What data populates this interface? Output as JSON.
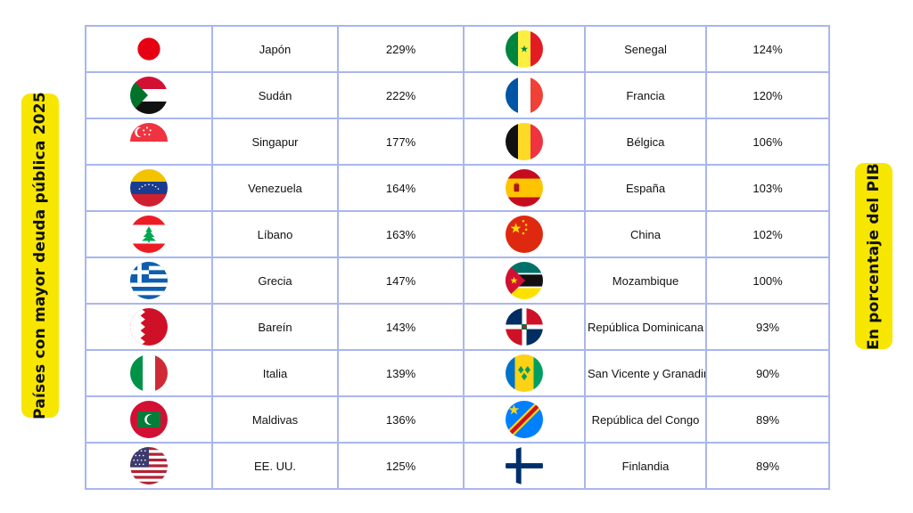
{
  "side_labels": {
    "left": "Países con mayor deuda pública 2025",
    "right": "En porcentaje del PIB"
  },
  "colors": {
    "label_background": "#f7e600",
    "grid_border": "#a9b6ee"
  },
  "chart_data": {
    "type": "table",
    "columns": [
      "flag",
      "country",
      "debt_pct_gdp"
    ],
    "left_column": [
      {
        "flag": "japan-flag-icon",
        "country": "Japón",
        "value": "229%"
      },
      {
        "flag": "sudan-flag-icon",
        "country": "Sudán",
        "value": "222%"
      },
      {
        "flag": "singapore-flag-icon",
        "country": "Singapur",
        "value": "177%"
      },
      {
        "flag": "venezuela-flag-icon",
        "country": "Venezuela",
        "value": "164%"
      },
      {
        "flag": "lebanon-flag-icon",
        "country": "Líbano",
        "value": "163%"
      },
      {
        "flag": "greece-flag-icon",
        "country": "Grecia",
        "value": "147%"
      },
      {
        "flag": "bahrain-flag-icon",
        "country": "Bareín",
        "value": "143%"
      },
      {
        "flag": "italy-flag-icon",
        "country": "Italia",
        "value": "139%"
      },
      {
        "flag": "maldives-flag-icon",
        "country": "Maldivas",
        "value": "136%"
      },
      {
        "flag": "usa-flag-icon",
        "country": "EE. UU.",
        "value": "125%"
      }
    ],
    "right_column": [
      {
        "flag": "senegal-flag-icon",
        "country": "Senegal",
        "value": "124%"
      },
      {
        "flag": "france-flag-icon",
        "country": "Francia",
        "value": "120%"
      },
      {
        "flag": "belgium-flag-icon",
        "country": "Bélgica",
        "value": "106%"
      },
      {
        "flag": "spain-flag-icon",
        "country": "España",
        "value": "103%"
      },
      {
        "flag": "china-flag-icon",
        "country": "China",
        "value": "102%"
      },
      {
        "flag": "mozambique-flag-icon",
        "country": "Mozambique",
        "value": "100%"
      },
      {
        "flag": "dominican-republic-flag-icon",
        "country": "República Dominicana",
        "value": "93%"
      },
      {
        "flag": "saint-vincent-flag-icon",
        "country": "San Vicente y Granadinas",
        "value": "90%"
      },
      {
        "flag": "dr-congo-flag-icon",
        "country": "República del Congo",
        "value": "89%"
      },
      {
        "flag": "finland-flag-icon",
        "country": "Finlandia",
        "value": "89%"
      }
    ]
  }
}
